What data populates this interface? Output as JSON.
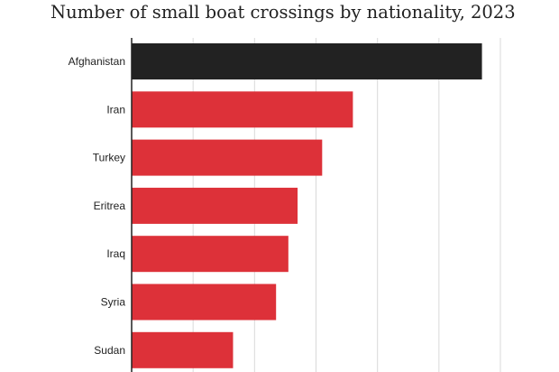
{
  "chart_data": {
    "type": "bar",
    "orientation": "horizontal",
    "title": "Number of small boat crossings by nationality, 2023",
    "categories": [
      "Afghanistan",
      "Iran",
      "Turkey",
      "Eritrea",
      "Iraq",
      "Syria",
      "Sudan"
    ],
    "values": [
      5700,
      3600,
      3100,
      2700,
      2550,
      2350,
      1650
    ],
    "colors": [
      "#222222",
      "#dd3139",
      "#dd3139",
      "#dd3139",
      "#dd3139",
      "#dd3139",
      "#dd3139"
    ],
    "xlim": [
      0,
      6000
    ],
    "grid": true,
    "xlabel": "",
    "ylabel": ""
  }
}
